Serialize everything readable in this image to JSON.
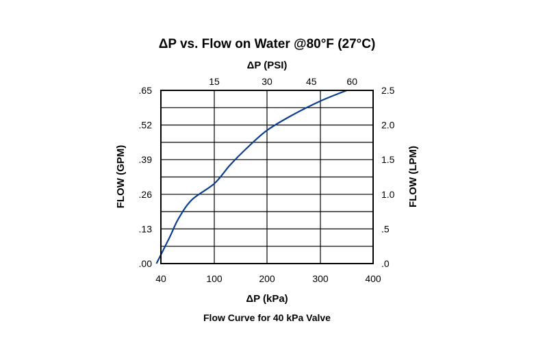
{
  "chart_data": {
    "type": "line",
    "title": "ΔP vs. Flow on Water @80°F (27°C)",
    "caption": "Flow Curve for 40 kPa Valve",
    "x_bottom": {
      "label": "ΔP (kPa)",
      "range": [
        40,
        400
      ],
      "ticks": [
        "40",
        "100",
        "200",
        "300",
        "400"
      ],
      "tick_values": [
        40,
        100,
        200,
        300,
        400
      ]
    },
    "x_top": {
      "label": "ΔP (PSI)",
      "ticks": [
        "15",
        "30",
        "45",
        "60"
      ],
      "tick_values_kpa": [
        100,
        200,
        283,
        360
      ]
    },
    "y_left": {
      "label": "FLOW (GPM)",
      "range": [
        0,
        0.65
      ],
      "ticks": [
        ".65",
        ".52",
        ".39",
        ".26",
        ".13",
        ".00"
      ],
      "tick_values": [
        0.65,
        0.52,
        0.39,
        0.26,
        0.13,
        0.0
      ]
    },
    "y_right": {
      "label": "FLOW (LPM)",
      "ticks": [
        "2.5",
        "2.0",
        "1.5",
        "1.0",
        ".5",
        ".0"
      ],
      "tick_values_gpm": [
        0.65,
        0.52,
        0.39,
        0.26,
        0.13,
        0.0
      ]
    },
    "grid": true,
    "series": [
      {
        "color": "#0b3d91",
        "x": [
          35,
          50,
          60,
          75,
          100,
          130,
          160,
          200,
          250,
          300,
          350
        ],
        "y": [
          0.0,
          0.1,
          0.17,
          0.24,
          0.3,
          0.37,
          0.43,
          0.5,
          0.56,
          0.61,
          0.65
        ]
      }
    ]
  }
}
